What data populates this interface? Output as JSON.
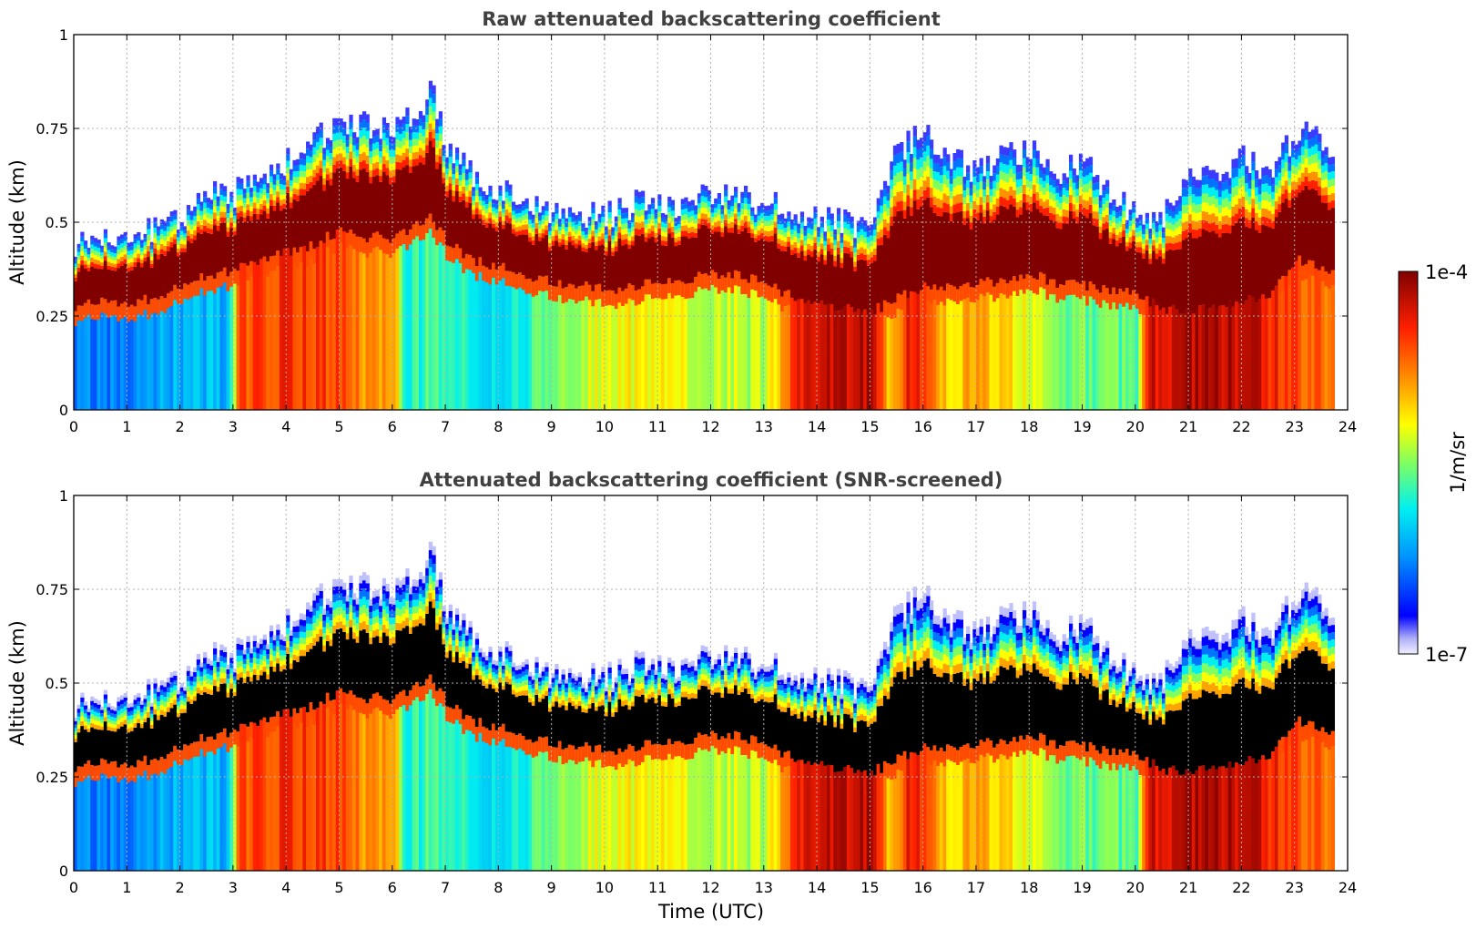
{
  "chart_data": [
    {
      "type": "heatmap",
      "title": "Raw attenuated backscattering coefficient",
      "xlabel": "",
      "ylabel": "Altitude (km)",
      "xlim": [
        0,
        24
      ],
      "ylim": [
        0,
        1
      ],
      "x_ticks": [
        "0",
        "1",
        "2",
        "3",
        "4",
        "5",
        "6",
        "7",
        "8",
        "9",
        "10",
        "11",
        "12",
        "13",
        "14",
        "15",
        "16",
        "17",
        "18",
        "19",
        "20",
        "21",
        "22",
        "23",
        "24"
      ],
      "y_ticks": [
        "0",
        "0.25",
        "0.5",
        "0.75",
        "1"
      ],
      "grid": true,
      "data_end_hour": 23.75,
      "layer_profile": {
        "time_utc": [
          0,
          0.5,
          1,
          1.5,
          2,
          2.5,
          3,
          3.5,
          4,
          4.5,
          5,
          5.5,
          6,
          6.5,
          6.7,
          7,
          7.5,
          8,
          8.5,
          9,
          9.5,
          10,
          10.5,
          11,
          11.5,
          12,
          12.5,
          13,
          13.5,
          14,
          14.5,
          15,
          15.5,
          16,
          16.5,
          17,
          17.5,
          18,
          18.5,
          19,
          19.5,
          20,
          20.5,
          21,
          21.5,
          22,
          22.5,
          23,
          23.5,
          23.75
        ],
        "layer_base_km": [
          0.27,
          0.29,
          0.28,
          0.3,
          0.33,
          0.36,
          0.37,
          0.4,
          0.42,
          0.44,
          0.48,
          0.46,
          0.46,
          0.5,
          0.52,
          0.45,
          0.4,
          0.38,
          0.36,
          0.34,
          0.33,
          0.32,
          0.33,
          0.34,
          0.35,
          0.36,
          0.36,
          0.34,
          0.3,
          0.28,
          0.27,
          0.26,
          0.3,
          0.33,
          0.33,
          0.34,
          0.34,
          0.36,
          0.34,
          0.33,
          0.32,
          0.31,
          0.27,
          0.27,
          0.28,
          0.29,
          0.3,
          0.4,
          0.38,
          0.35
        ],
        "layer_top_km": [
          0.42,
          0.46,
          0.44,
          0.47,
          0.5,
          0.56,
          0.56,
          0.6,
          0.65,
          0.7,
          0.74,
          0.74,
          0.72,
          0.78,
          0.86,
          0.68,
          0.6,
          0.58,
          0.54,
          0.5,
          0.5,
          0.5,
          0.53,
          0.54,
          0.53,
          0.56,
          0.55,
          0.53,
          0.52,
          0.5,
          0.48,
          0.46,
          0.68,
          0.72,
          0.65,
          0.62,
          0.66,
          0.68,
          0.62,
          0.64,
          0.56,
          0.5,
          0.5,
          0.6,
          0.62,
          0.66,
          0.62,
          0.72,
          0.7,
          0.62
        ]
      },
      "surface_intensity_log10": {
        "time_utc": [
          0,
          1,
          2,
          2.9,
          3.1,
          4,
          5,
          5.5,
          6,
          6.2,
          7,
          8,
          8.5,
          9,
          10,
          11,
          12,
          13,
          13.5,
          14,
          15,
          15.3,
          15.8,
          16.5,
          17,
          18,
          19,
          20,
          20.2,
          21,
          22,
          23,
          23.75
        ],
        "log10_value": [
          -6.3,
          -6.3,
          -6.1,
          -6.1,
          -4.6,
          -4.5,
          -4.6,
          -4.9,
          -4.8,
          -5.8,
          -5.6,
          -6.0,
          -5.8,
          -5.5,
          -5.2,
          -5.2,
          -5.3,
          -5.4,
          -4.5,
          -4.3,
          -4.2,
          -5.0,
          -4.3,
          -5.1,
          -4.9,
          -5.3,
          -5.6,
          -5.6,
          -4.3,
          -4.2,
          -4.2,
          -4.6,
          -4.8
        ]
      }
    },
    {
      "type": "heatmap",
      "title": "Attenuated backscattering coefficient (SNR-screened)",
      "xlabel": "Time (UTC)",
      "ylabel": "Altitude (km)",
      "xlim": [
        0,
        24
      ],
      "ylim": [
        0,
        1
      ],
      "x_ticks": [
        "0",
        "1",
        "2",
        "3",
        "4",
        "5",
        "6",
        "7",
        "8",
        "9",
        "10",
        "11",
        "12",
        "13",
        "14",
        "15",
        "16",
        "17",
        "18",
        "19",
        "20",
        "21",
        "22",
        "23",
        "24"
      ],
      "y_ticks": [
        "0",
        "0.25",
        "0.5",
        "0.75",
        "1"
      ],
      "grid": true,
      "screened_color": "#000000",
      "note": "Saturated layer core rendered black after SNR screening"
    }
  ],
  "colorbar": {
    "label": "1/m/sr",
    "min_label": "1e-7",
    "max_label": "1e-4",
    "log10_min": -7,
    "log10_max": -4,
    "colormap": "jet",
    "colors": [
      "#e6e6fa",
      "#0000ff",
      "#00a0ff",
      "#00ffd0",
      "#90ff40",
      "#ffff00",
      "#ff8000",
      "#ff0000",
      "#800000"
    ]
  }
}
